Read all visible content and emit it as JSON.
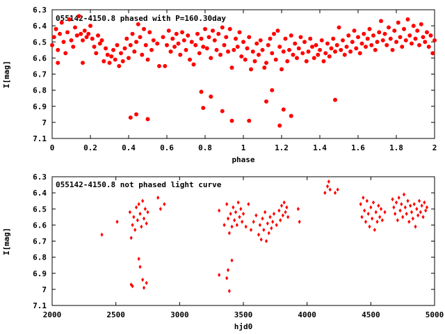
{
  "chart_data": [
    {
      "type": "scatter",
      "title": "055142-4150.8 phased with P=160.30day",
      "xlabel": "phase",
      "ylabel": "I[mag]",
      "xlim": [
        0,
        2
      ],
      "ylim": [
        7.1,
        6.3
      ],
      "y_inverted": true,
      "grid": false,
      "marker": "filled-circle",
      "color": "#ff0000",
      "xticks": [
        "0",
        "0.2",
        "0.4",
        "0.6",
        "0.8",
        "1",
        "1.2",
        "1.4",
        "1.6",
        "1.8",
        "2"
      ],
      "yticks": [
        "6.3",
        "6.4",
        "6.5",
        "6.6",
        "6.7",
        "6.8",
        "6.9",
        "7",
        "7.1"
      ],
      "points": [
        [
          0.0,
          6.52
        ],
        [
          0.01,
          6.47
        ],
        [
          0.02,
          6.42
        ],
        [
          0.03,
          6.55
        ],
        [
          0.03,
          6.63
        ],
        [
          0.04,
          6.45
        ],
        [
          0.05,
          6.38
        ],
        [
          0.06,
          6.5
        ],
        [
          0.07,
          6.57
        ],
        [
          0.08,
          6.44
        ],
        [
          0.09,
          6.36
        ],
        [
          0.1,
          6.49
        ],
        [
          0.11,
          6.53
        ],
        [
          0.12,
          6.41
        ],
        [
          0.13,
          6.46
        ],
        [
          0.14,
          6.34
        ],
        [
          0.15,
          6.45
        ],
        [
          0.16,
          6.49
        ],
        [
          0.16,
          6.63
        ],
        [
          0.17,
          6.43
        ],
        [
          0.18,
          6.47
        ],
        [
          0.19,
          6.45
        ],
        [
          0.2,
          6.4
        ],
        [
          0.21,
          6.48
        ],
        [
          0.22,
          6.53
        ],
        [
          0.23,
          6.57
        ],
        [
          0.24,
          6.46
        ],
        [
          0.25,
          6.51
        ],
        [
          0.26,
          6.49
        ],
        [
          0.27,
          6.62
        ],
        [
          0.28,
          6.54
        ],
        [
          0.29,
          6.58
        ],
        [
          0.3,
          6.63
        ],
        [
          0.31,
          6.59
        ],
        [
          0.32,
          6.55
        ],
        [
          0.33,
          6.61
        ],
        [
          0.34,
          6.52
        ],
        [
          0.35,
          6.65
        ],
        [
          0.36,
          6.57
        ],
        [
          0.37,
          6.62
        ],
        [
          0.38,
          6.54
        ],
        [
          0.39,
          6.48
        ],
        [
          0.4,
          6.6
        ],
        [
          0.41,
          6.52
        ],
        [
          0.42,
          6.45
        ],
        [
          0.43,
          6.56
        ],
        [
          0.44,
          6.5
        ],
        [
          0.45,
          6.39
        ],
        [
          0.46,
          6.47
        ],
        [
          0.47,
          6.58
        ],
        [
          0.48,
          6.42
        ],
        [
          0.49,
          6.52
        ],
        [
          0.5,
          6.61
        ],
        [
          0.51,
          6.44
        ],
        [
          0.52,
          6.55
        ],
        [
          0.53,
          6.49
        ],
        [
          0.55,
          6.51
        ],
        [
          0.56,
          6.65
        ],
        [
          0.58,
          6.47
        ],
        [
          0.59,
          6.65
        ],
        [
          0.6,
          6.52
        ],
        [
          0.61,
          6.43
        ],
        [
          0.62,
          6.56
        ],
        [
          0.63,
          6.48
        ],
        [
          0.64,
          6.53
        ],
        [
          0.65,
          6.45
        ],
        [
          0.66,
          6.51
        ],
        [
          0.67,
          6.58
        ],
        [
          0.68,
          6.44
        ],
        [
          0.69,
          6.49
        ],
        [
          0.7,
          6.55
        ],
        [
          0.71,
          6.46
        ],
        [
          0.72,
          6.61
        ],
        [
          0.73,
          6.5
        ],
        [
          0.74,
          6.64
        ],
        [
          0.75,
          6.52
        ],
        [
          0.76,
          6.45
        ],
        [
          0.77,
          6.57
        ],
        [
          0.78,
          6.48
        ],
        [
          0.79,
          6.53
        ],
        [
          0.8,
          6.42
        ],
        [
          0.81,
          6.54
        ],
        [
          0.82,
          6.47
        ],
        [
          0.83,
          6.6
        ],
        [
          0.84,
          6.43
        ],
        [
          0.85,
          6.49
        ],
        [
          0.86,
          6.55
        ],
        [
          0.87,
          6.45
        ],
        [
          0.88,
          6.58
        ],
        [
          0.89,
          6.41
        ],
        [
          0.9,
          6.52
        ],
        [
          0.91,
          6.47
        ],
        [
          0.92,
          6.56
        ],
        [
          0.93,
          6.42
        ],
        [
          0.94,
          6.66
        ],
        [
          0.95,
          6.55
        ],
        [
          0.96,
          6.48
        ],
        [
          0.97,
          6.53
        ],
        [
          0.98,
          6.44
        ],
        [
          0.99,
          6.59
        ],
        [
          1.0,
          6.5
        ],
        [
          1.01,
          6.61
        ],
        [
          1.02,
          6.54
        ],
        [
          1.03,
          6.47
        ],
        [
          1.04,
          6.67
        ],
        [
          1.05,
          6.56
        ],
        [
          1.06,
          6.62
        ],
        [
          1.07,
          6.51
        ],
        [
          1.08,
          6.58
        ],
        [
          1.09,
          6.49
        ],
        [
          1.1,
          6.55
        ],
        [
          1.11,
          6.66
        ],
        [
          1.12,
          6.63
        ],
        [
          1.13,
          6.52
        ],
        [
          1.14,
          6.48
        ],
        [
          1.15,
          6.57
        ],
        [
          1.16,
          6.45
        ],
        [
          1.17,
          6.61
        ],
        [
          1.18,
          6.43
        ],
        [
          1.19,
          6.53
        ],
        [
          1.2,
          6.67
        ],
        [
          1.21,
          6.56
        ],
        [
          1.22,
          6.48
        ],
        [
          1.23,
          6.62
        ],
        [
          1.24,
          6.55
        ],
        [
          1.25,
          6.46
        ],
        [
          1.26,
          6.58
        ],
        [
          1.27,
          6.51
        ],
        [
          1.28,
          6.6
        ],
        [
          1.29,
          6.54
        ],
        [
          1.3,
          6.47
        ],
        [
          1.31,
          6.57
        ],
        [
          1.32,
          6.5
        ],
        [
          1.33,
          6.62
        ],
        [
          1.34,
          6.56
        ],
        [
          1.35,
          6.48
        ],
        [
          1.36,
          6.53
        ],
        [
          1.37,
          6.6
        ],
        [
          1.38,
          6.52
        ],
        [
          1.39,
          6.58
        ],
        [
          1.4,
          6.55
        ],
        [
          1.41,
          6.49
        ],
        [
          1.42,
          6.62
        ],
        [
          1.43,
          6.57
        ],
        [
          1.44,
          6.51
        ],
        [
          1.45,
          6.59
        ],
        [
          1.46,
          6.54
        ],
        [
          1.47,
          6.48
        ],
        [
          1.48,
          6.56
        ],
        [
          1.49,
          6.52
        ],
        [
          1.5,
          6.41
        ],
        [
          1.51,
          6.55
        ],
        [
          1.52,
          6.49
        ],
        [
          1.53,
          6.58
        ],
        [
          1.54,
          6.53
        ],
        [
          1.55,
          6.46
        ],
        [
          1.56,
          6.56
        ],
        [
          1.57,
          6.5
        ],
        [
          1.58,
          6.43
        ],
        [
          1.59,
          6.54
        ],
        [
          1.6,
          6.47
        ],
        [
          1.61,
          6.57
        ],
        [
          1.62,
          6.51
        ],
        [
          1.63,
          6.45
        ],
        [
          1.64,
          6.53
        ],
        [
          1.65,
          6.48
        ],
        [
          1.66,
          6.42
        ],
        [
          1.67,
          6.52
        ],
        [
          1.68,
          6.46
        ],
        [
          1.69,
          6.55
        ],
        [
          1.7,
          6.5
        ],
        [
          1.71,
          6.44
        ],
        [
          1.72,
          6.37
        ],
        [
          1.73,
          6.49
        ],
        [
          1.74,
          6.45
        ],
        [
          1.75,
          6.52
        ],
        [
          1.76,
          6.41
        ],
        [
          1.77,
          6.48
        ],
        [
          1.78,
          6.55
        ],
        [
          1.79,
          6.43
        ],
        [
          1.8,
          6.5
        ],
        [
          1.81,
          6.38
        ],
        [
          1.82,
          6.47
        ],
        [
          1.83,
          6.53
        ],
        [
          1.84,
          6.42
        ],
        [
          1.85,
          6.49
        ],
        [
          1.86,
          6.36
        ],
        [
          1.87,
          6.46
        ],
        [
          1.88,
          6.51
        ],
        [
          1.89,
          6.4
        ],
        [
          1.9,
          6.48
        ],
        [
          1.91,
          6.43
        ],
        [
          1.92,
          6.52
        ],
        [
          1.93,
          6.39
        ],
        [
          1.94,
          6.47
        ],
        [
          1.95,
          6.5
        ],
        [
          1.96,
          6.44
        ],
        [
          1.97,
          6.53
        ],
        [
          1.98,
          6.46
        ],
        [
          1.99,
          6.57
        ],
        [
          2.0,
          6.49
        ],
        [
          0.41,
          6.97
        ],
        [
          0.44,
          6.95
        ],
        [
          0.5,
          6.98
        ],
        [
          0.78,
          6.81
        ],
        [
          0.79,
          6.91
        ],
        [
          0.83,
          6.84
        ],
        [
          0.89,
          6.93
        ],
        [
          0.94,
          6.99
        ],
        [
          1.03,
          6.99
        ],
        [
          1.12,
          6.87
        ],
        [
          1.15,
          6.8
        ],
        [
          1.19,
          7.02
        ],
        [
          1.21,
          6.92
        ],
        [
          1.25,
          6.96
        ],
        [
          1.48,
          6.86
        ]
      ]
    },
    {
      "type": "scatter",
      "title": "055142-4150.8 not phased light curve",
      "xlabel": "hjd0",
      "ylabel": "I[mag]",
      "xlim": [
        2000,
        5000
      ],
      "ylim": [
        7.1,
        6.3
      ],
      "y_inverted": true,
      "grid": false,
      "marker": "small-diamond",
      "color": "#ff0000",
      "xticks": [
        "2000",
        "2500",
        "3000",
        "3500",
        "4000",
        "4500",
        "5000"
      ],
      "yticks": [
        "6.3",
        "6.4",
        "6.5",
        "6.6",
        "6.7",
        "6.8",
        "6.9",
        "7",
        "7.1"
      ],
      "points": [
        [
          2390,
          6.66
        ],
        [
          2510,
          6.58
        ],
        [
          2610,
          6.52
        ],
        [
          2620,
          6.68
        ],
        [
          2630,
          6.6
        ],
        [
          2640,
          6.55
        ],
        [
          2650,
          6.63
        ],
        [
          2660,
          6.49
        ],
        [
          2670,
          6.57
        ],
        [
          2680,
          6.47
        ],
        [
          2690,
          6.53
        ],
        [
          2700,
          6.61
        ],
        [
          2710,
          6.45
        ],
        [
          2720,
          6.56
        ],
        [
          2730,
          6.5
        ],
        [
          2740,
          6.59
        ],
        [
          2750,
          6.52
        ],
        [
          2830,
          6.43
        ],
        [
          2850,
          6.5
        ],
        [
          2880,
          6.47
        ],
        [
          2620,
          6.97
        ],
        [
          2630,
          6.98
        ],
        [
          2680,
          6.81
        ],
        [
          2690,
          6.86
        ],
        [
          2710,
          6.94
        ],
        [
          2720,
          6.99
        ],
        [
          2740,
          6.96
        ],
        [
          3310,
          6.51
        ],
        [
          3350,
          6.6
        ],
        [
          3370,
          6.47
        ],
        [
          3380,
          6.56
        ],
        [
          3390,
          6.65
        ],
        [
          3400,
          6.53
        ],
        [
          3410,
          6.61
        ],
        [
          3420,
          6.49
        ],
        [
          3430,
          6.57
        ],
        [
          3440,
          6.52
        ],
        [
          3450,
          6.6
        ],
        [
          3460,
          6.46
        ],
        [
          3470,
          6.55
        ],
        [
          3480,
          6.5
        ],
        [
          3490,
          6.58
        ],
        [
          3500,
          6.53
        ],
        [
          3520,
          6.61
        ],
        [
          3540,
          6.47
        ],
        [
          3560,
          6.63
        ],
        [
          3580,
          6.58
        ],
        [
          3600,
          6.54
        ],
        [
          3620,
          6.66
        ],
        [
          3630,
          6.6
        ],
        [
          3640,
          6.69
        ],
        [
          3650,
          6.56
        ],
        [
          3660,
          6.63
        ],
        [
          3670,
          6.52
        ],
        [
          3680,
          6.7
        ],
        [
          3690,
          6.59
        ],
        [
          3700,
          6.65
        ],
        [
          3710,
          6.55
        ],
        [
          3720,
          6.62
        ],
        [
          3730,
          6.58
        ],
        [
          3740,
          6.53
        ],
        [
          3760,
          6.6
        ],
        [
          3780,
          6.51
        ],
        [
          3790,
          6.57
        ],
        [
          3800,
          6.48
        ],
        [
          3810,
          6.54
        ],
        [
          3820,
          6.46
        ],
        [
          3830,
          6.52
        ],
        [
          3840,
          6.49
        ],
        [
          3850,
          6.55
        ],
        [
          3930,
          6.5
        ],
        [
          3940,
          6.58
        ],
        [
          3310,
          6.91
        ],
        [
          3370,
          6.93
        ],
        [
          3380,
          6.88
        ],
        [
          3390,
          7.01
        ],
        [
          3410,
          6.82
        ],
        [
          4140,
          6.4
        ],
        [
          4160,
          6.36
        ],
        [
          4170,
          6.33
        ],
        [
          4180,
          6.38
        ],
        [
          4220,
          6.4
        ],
        [
          4240,
          6.38
        ],
        [
          4420,
          6.47
        ],
        [
          4430,
          6.55
        ],
        [
          4440,
          6.43
        ],
        [
          4450,
          6.51
        ],
        [
          4460,
          6.58
        ],
        [
          4470,
          6.45
        ],
        [
          4480,
          6.53
        ],
        [
          4490,
          6.61
        ],
        [
          4500,
          6.49
        ],
        [
          4510,
          6.56
        ],
        [
          4520,
          6.46
        ],
        [
          4530,
          6.63
        ],
        [
          4540,
          6.52
        ],
        [
          4550,
          6.58
        ],
        [
          4560,
          6.48
        ],
        [
          4570,
          6.55
        ],
        [
          4580,
          6.5
        ],
        [
          4590,
          6.57
        ],
        [
          4610,
          6.52
        ],
        [
          4670,
          6.44
        ],
        [
          4680,
          6.49
        ],
        [
          4690,
          6.53
        ],
        [
          4700,
          6.46
        ],
        [
          4710,
          6.57
        ],
        [
          4720,
          6.43
        ],
        [
          4730,
          6.51
        ],
        [
          4740,
          6.47
        ],
        [
          4750,
          6.55
        ],
        [
          4760,
          6.41
        ],
        [
          4770,
          6.49
        ],
        [
          4780,
          6.53
        ],
        [
          4790,
          6.45
        ],
        [
          4800,
          6.58
        ],
        [
          4810,
          6.48
        ],
        [
          4820,
          6.52
        ],
        [
          4830,
          6.56
        ],
        [
          4840,
          6.47
        ],
        [
          4850,
          6.61
        ],
        [
          4860,
          6.5
        ],
        [
          4870,
          6.54
        ],
        [
          4880,
          6.45
        ],
        [
          4890,
          6.52
        ],
        [
          4900,
          6.48
        ],
        [
          4910,
          6.55
        ],
        [
          4920,
          6.46
        ],
        [
          4930,
          6.51
        ],
        [
          4940,
          6.49
        ]
      ]
    }
  ]
}
